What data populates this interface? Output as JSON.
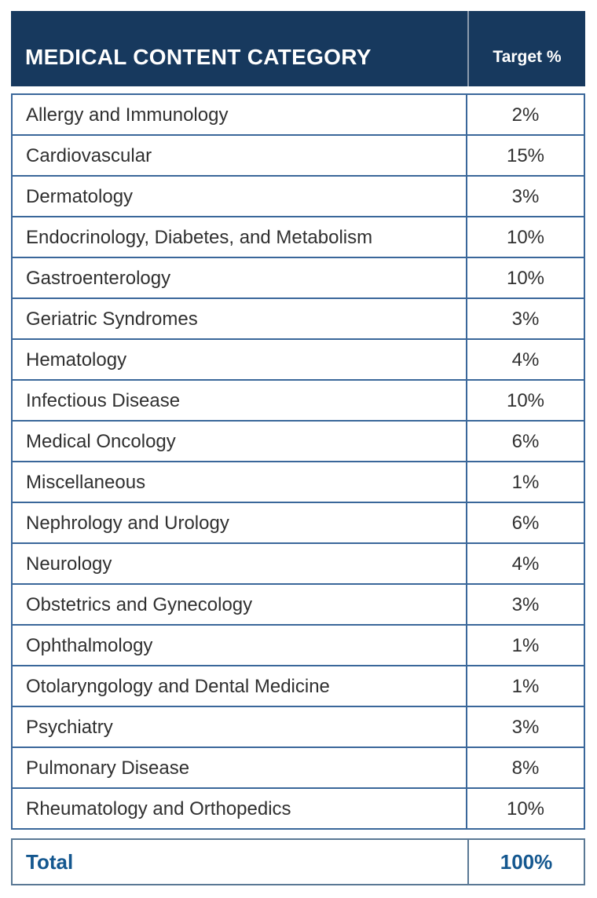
{
  "colors": {
    "header_bg": "#17395E",
    "header_text": "#FFFFFF",
    "border": "#3A679A",
    "total_text": "#14578F",
    "body_text": "#303030"
  },
  "table": {
    "header": {
      "category_label": "MEDICAL CONTENT CATEGORY",
      "target_label": "Target %"
    },
    "rows": [
      {
        "category": "Allergy and Immunology",
        "target": "2%"
      },
      {
        "category": "Cardiovascular",
        "target": "15%"
      },
      {
        "category": "Dermatology",
        "target": "3%"
      },
      {
        "category": "Endocrinology, Diabetes, and Metabolism",
        "target": "10%"
      },
      {
        "category": "Gastroenterology",
        "target": "10%"
      },
      {
        "category": "Geriatric Syndromes",
        "target": "3%"
      },
      {
        "category": "Hematology",
        "target": "4%"
      },
      {
        "category": "Infectious Disease",
        "target": "10%"
      },
      {
        "category": "Medical Oncology",
        "target": "6%"
      },
      {
        "category": "Miscellaneous",
        "target": "1%"
      },
      {
        "category": "Nephrology and Urology",
        "target": "6%"
      },
      {
        "category": "Neurology",
        "target": "4%"
      },
      {
        "category": "Obstetrics and Gynecology",
        "target": "3%"
      },
      {
        "category": "Ophthalmology",
        "target": "1%"
      },
      {
        "category": "Otolaryngology and Dental Medicine",
        "target": "1%"
      },
      {
        "category": "Psychiatry",
        "target": "3%"
      },
      {
        "category": "Pulmonary Disease",
        "target": "8%"
      },
      {
        "category": "Rheumatology and Orthopedics",
        "target": "10%"
      }
    ],
    "total": {
      "label": "Total",
      "value": "100%"
    }
  }
}
